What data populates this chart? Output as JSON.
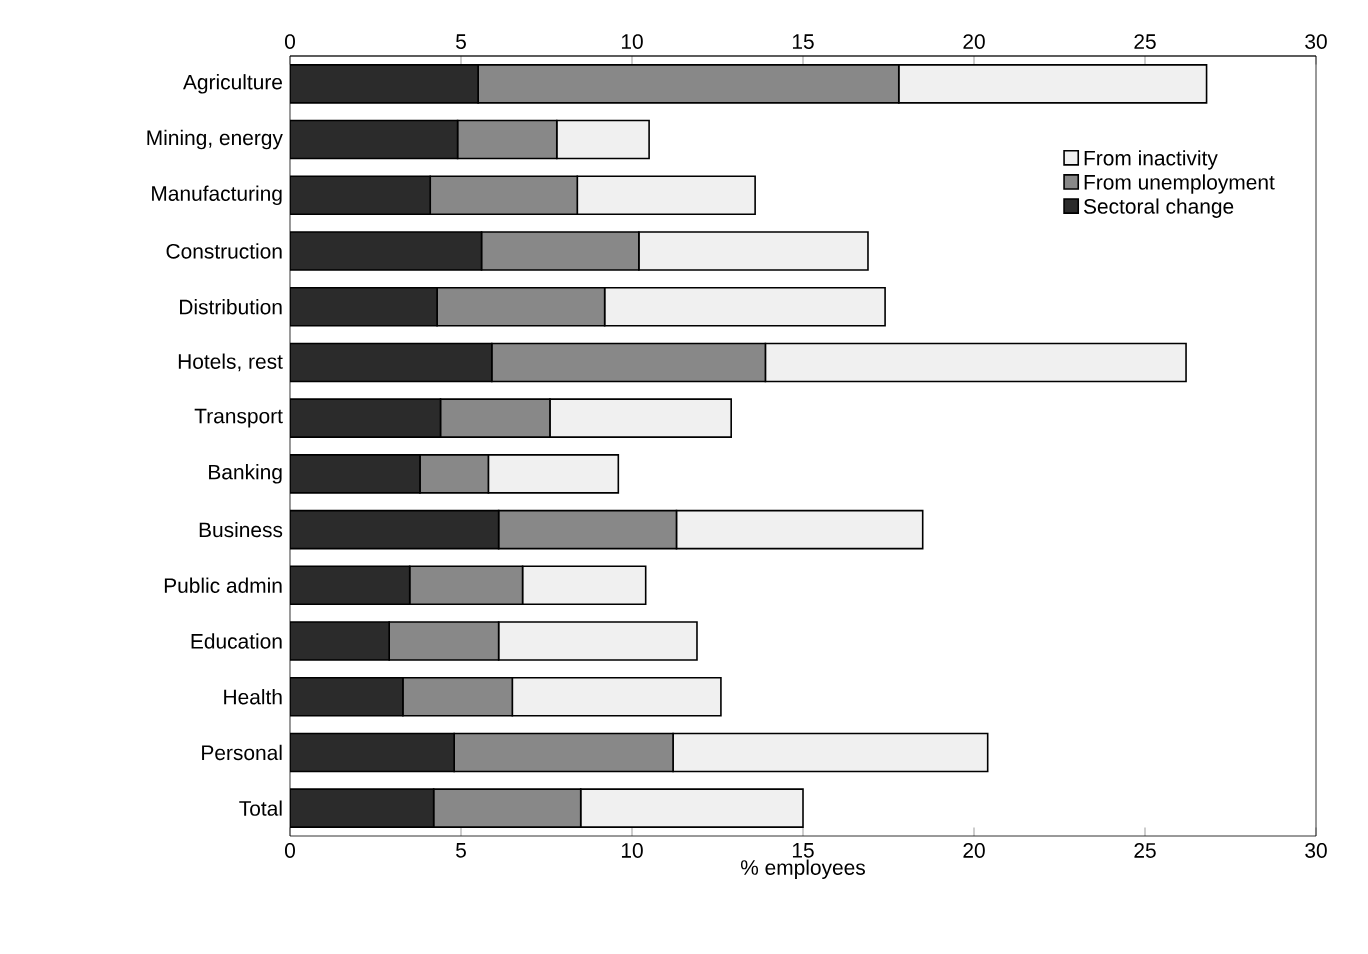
{
  "chart_data": {
    "type": "bar",
    "orientation": "horizontal",
    "stacked": true,
    "categories": [
      "Agriculture",
      "Mining, energy",
      "Manufacturing",
      "Construction",
      "Distribution",
      "Hotels, rest",
      "Transport",
      "Banking",
      "Business",
      "Public admin",
      "Education",
      "Health",
      "Personal",
      "Total"
    ],
    "series": [
      {
        "name": "Sectoral change",
        "color": "#2b2b2b",
        "values": [
          5.5,
          4.9,
          4.1,
          5.6,
          4.3,
          5.9,
          4.4,
          3.8,
          6.1,
          3.5,
          2.9,
          3.3,
          4.8,
          4.2
        ]
      },
      {
        "name": "From unemployment",
        "color": "#888888",
        "values": [
          12.3,
          2.9,
          4.3,
          4.6,
          4.9,
          8.0,
          3.2,
          2.0,
          5.2,
          3.3,
          3.2,
          3.2,
          6.4,
          4.3
        ]
      },
      {
        "name": "From inactivity",
        "color": "#f0f0f0",
        "values": [
          9.0,
          2.7,
          5.2,
          6.7,
          8.2,
          12.3,
          5.3,
          3.8,
          7.2,
          3.6,
          5.8,
          6.1,
          9.2,
          6.5
        ]
      }
    ],
    "xlabel": "% employees",
    "xlim": [
      0,
      30
    ],
    "xticks": [
      0,
      5,
      10,
      15,
      20,
      25,
      30
    ],
    "x2lim": [
      0,
      30
    ],
    "x2ticks": [
      0,
      5,
      10,
      15,
      20,
      25,
      30
    ],
    "grid": false,
    "legend": "top right"
  }
}
